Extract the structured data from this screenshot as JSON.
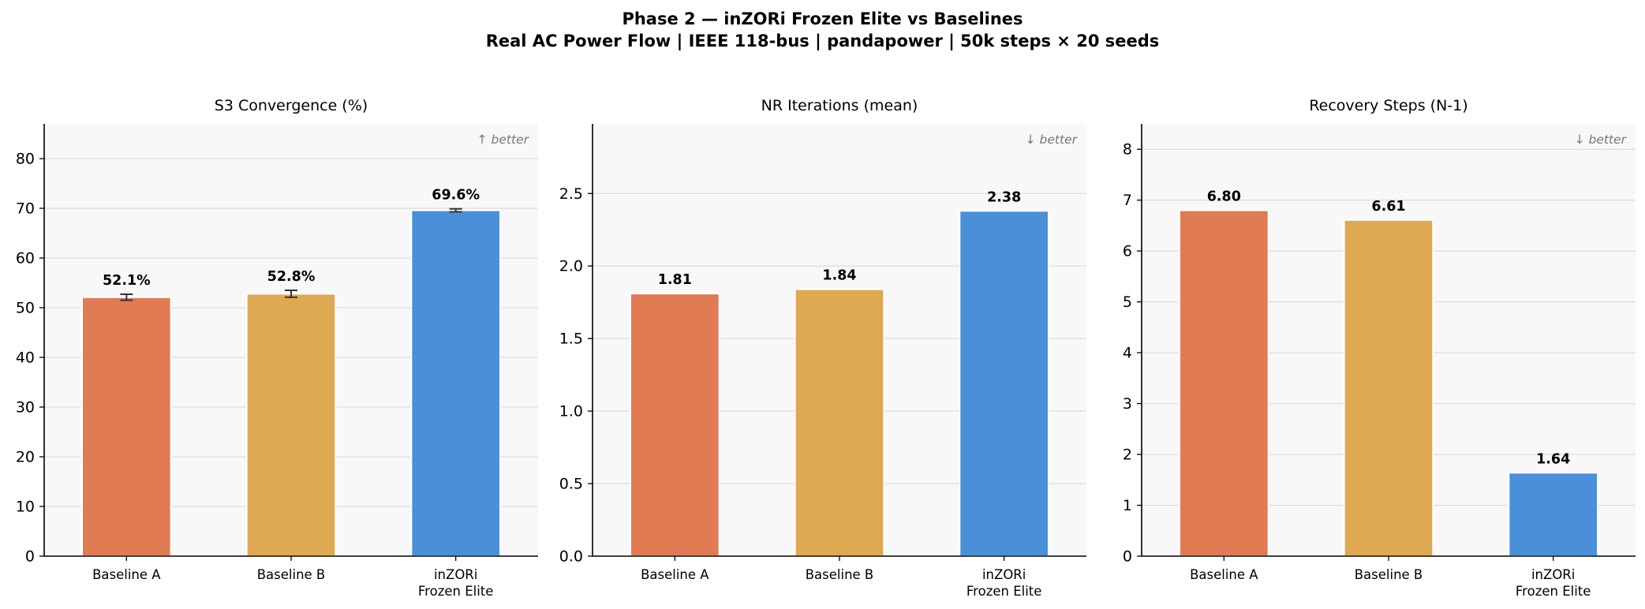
{
  "figure": {
    "title_line1": "Phase 2 — inZORi Frozen Elite vs Baselines",
    "title_line2": "Real AC Power Flow | IEEE 118-bus | pandapower | 50k steps × 20 seeds"
  },
  "colors": {
    "Baseline A": "#E07B53",
    "Baseline B": "#DFA853",
    "inZORi Frozen Elite": "#4A90D9",
    "panel_bg": "#F8F8F8",
    "grid": "#DDDDDD",
    "axis": "#000000",
    "hint": "#777777"
  },
  "chart_data": [
    {
      "type": "bar",
      "title": "S3 Convergence (%)",
      "hint": "↑ better",
      "categories": [
        [
          "Baseline A"
        ],
        [
          "Baseline B"
        ],
        [
          "inZORi",
          "Frozen Elite"
        ]
      ],
      "series_keys": [
        "Baseline A",
        "Baseline B",
        "inZORi Frozen Elite"
      ],
      "values": [
        52.1,
        52.8,
        69.6
      ],
      "errors": [
        0.6,
        0.7,
        0.3
      ],
      "value_labels": [
        "52.1%",
        "52.8%",
        "69.6%"
      ],
      "ylim": [
        0,
        87
      ],
      "yticks": [
        0,
        10,
        20,
        30,
        40,
        50,
        60,
        70,
        80
      ],
      "ytick_labels": [
        "0",
        "10",
        "20",
        "30",
        "40",
        "50",
        "60",
        "70",
        "80"
      ],
      "grid": true
    },
    {
      "type": "bar",
      "title": "NR Iterations (mean)",
      "hint": "↓ better",
      "categories": [
        [
          "Baseline A"
        ],
        [
          "Baseline B"
        ],
        [
          "inZORi",
          "Frozen Elite"
        ]
      ],
      "series_keys": [
        "Baseline A",
        "Baseline B",
        "inZORi Frozen Elite"
      ],
      "values": [
        1.81,
        1.84,
        2.38
      ],
      "value_labels": [
        "1.81",
        "1.84",
        "2.38"
      ],
      "ylim": [
        0,
        2.98
      ],
      "yticks": [
        0,
        0.5,
        1.0,
        1.5,
        2.0,
        2.5
      ],
      "ytick_labels": [
        "0.0",
        "0.5",
        "1.0",
        "1.5",
        "2.0",
        "2.5"
      ],
      "grid": true
    },
    {
      "type": "bar",
      "title": "Recovery Steps (N-1)",
      "hint": "↓ better",
      "categories": [
        [
          "Baseline A"
        ],
        [
          "Baseline B"
        ],
        [
          "inZORi",
          "Frozen Elite"
        ]
      ],
      "series_keys": [
        "Baseline A",
        "Baseline B",
        "inZORi Frozen Elite"
      ],
      "values": [
        6.8,
        6.61,
        1.64
      ],
      "value_labels": [
        "6.80",
        "6.61",
        "1.64"
      ],
      "ylim": [
        0,
        8.5
      ],
      "yticks": [
        0,
        1,
        2,
        3,
        4,
        5,
        6,
        7,
        8
      ],
      "ytick_labels": [
        "0",
        "1",
        "2",
        "3",
        "4",
        "5",
        "6",
        "7",
        "8"
      ],
      "grid": true
    }
  ]
}
